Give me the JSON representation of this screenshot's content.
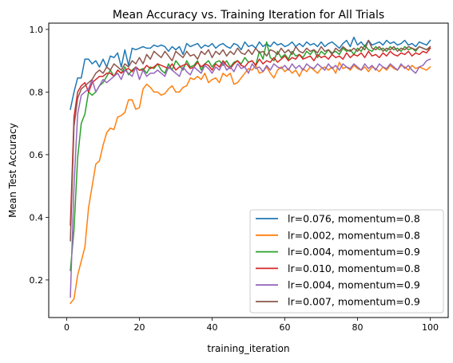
{
  "chart_data": {
    "type": "line",
    "title": "Mean Accuracy vs. Training Iteration for All Trials",
    "xlabel": "training_iteration",
    "ylabel": "Mean Test Accuracy",
    "xlim": [
      -4.95,
      104.95
    ],
    "ylim": [
      0.08,
      1.02
    ],
    "xticks": [
      0,
      20,
      40,
      60,
      80,
      100
    ],
    "yticks": [
      0.2,
      0.4,
      0.6,
      0.8,
      1.0
    ],
    "ytick_labels": [
      "0.2",
      "0.4",
      "0.6",
      "0.8",
      "1.0"
    ],
    "grid": false,
    "legend": "lower-right",
    "series": [
      {
        "name": "lr=0.076, momentum=0.8",
        "color": "#1f77b4",
        "x": [
          1,
          2,
          3,
          4,
          5,
          6,
          7,
          8,
          9,
          10,
          11,
          12,
          13,
          14,
          15,
          16,
          17,
          18,
          19,
          20,
          21,
          22,
          23,
          24,
          25,
          26,
          27,
          28,
          29,
          30,
          31,
          32,
          33,
          34,
          35,
          36,
          37,
          38,
          39,
          40,
          41,
          42,
          43,
          44,
          45,
          46,
          47,
          48,
          49,
          50,
          51,
          52,
          53,
          54,
          55,
          56,
          57,
          58,
          59,
          60,
          61,
          62,
          63,
          64,
          65,
          66,
          67,
          68,
          69,
          70,
          71,
          72,
          73,
          74,
          75,
          76,
          77,
          78,
          79,
          80,
          81,
          82,
          83,
          84,
          85,
          86,
          87,
          88,
          89,
          90,
          91,
          92,
          93,
          94,
          95,
          96,
          97,
          98,
          99,
          100
        ],
        "values": [
          0.745,
          0.8,
          0.845,
          0.845,
          0.905,
          0.905,
          0.89,
          0.9,
          0.88,
          0.905,
          0.88,
          0.915,
          0.91,
          0.925,
          0.88,
          0.935,
          0.885,
          0.94,
          0.935,
          0.94,
          0.945,
          0.94,
          0.94,
          0.95,
          0.945,
          0.95,
          0.945,
          0.93,
          0.945,
          0.935,
          0.945,
          0.92,
          0.955,
          0.945,
          0.95,
          0.955,
          0.94,
          0.95,
          0.945,
          0.955,
          0.94,
          0.95,
          0.955,
          0.945,
          0.94,
          0.955,
          0.95,
          0.935,
          0.96,
          0.945,
          0.95,
          0.94,
          0.96,
          0.945,
          0.955,
          0.945,
          0.96,
          0.95,
          0.955,
          0.945,
          0.95,
          0.96,
          0.945,
          0.955,
          0.945,
          0.96,
          0.95,
          0.955,
          0.945,
          0.96,
          0.945,
          0.955,
          0.96,
          0.95,
          0.94,
          0.955,
          0.965,
          0.945,
          0.975,
          0.95,
          0.96,
          0.945,
          0.965,
          0.95,
          0.955,
          0.96,
          0.95,
          0.965,
          0.955,
          0.96,
          0.95,
          0.955,
          0.965,
          0.95,
          0.955,
          0.945,
          0.96,
          0.955,
          0.95,
          0.965
        ]
      },
      {
        "name": "lr=0.002, momentum=0.8",
        "color": "#ff7f0e",
        "x": [
          1,
          2,
          3,
          4,
          5,
          6,
          7,
          8,
          9,
          10,
          11,
          12,
          13,
          14,
          15,
          16,
          17,
          18,
          19,
          20,
          21,
          22,
          23,
          24,
          25,
          26,
          27,
          28,
          29,
          30,
          31,
          32,
          33,
          34,
          35,
          36,
          37,
          38,
          39,
          40,
          41,
          42,
          43,
          44,
          45,
          46,
          47,
          48,
          49,
          50,
          51,
          52,
          53,
          54,
          55,
          56,
          57,
          58,
          59,
          60,
          61,
          62,
          63,
          64,
          65,
          66,
          67,
          68,
          69,
          70,
          71,
          72,
          73,
          74,
          75,
          76,
          77,
          78,
          79,
          80,
          81,
          82,
          83,
          84,
          85,
          86,
          87,
          88,
          89,
          90,
          91,
          92,
          93,
          94,
          95,
          96,
          97,
          98,
          99,
          100
        ],
        "values": [
          0.125,
          0.14,
          0.215,
          0.26,
          0.305,
          0.43,
          0.5,
          0.57,
          0.58,
          0.63,
          0.67,
          0.685,
          0.68,
          0.72,
          0.725,
          0.735,
          0.775,
          0.775,
          0.745,
          0.75,
          0.81,
          0.825,
          0.815,
          0.8,
          0.8,
          0.79,
          0.795,
          0.81,
          0.82,
          0.8,
          0.8,
          0.815,
          0.82,
          0.845,
          0.84,
          0.85,
          0.84,
          0.86,
          0.83,
          0.84,
          0.845,
          0.83,
          0.86,
          0.85,
          0.86,
          0.825,
          0.83,
          0.845,
          0.86,
          0.875,
          0.87,
          0.885,
          0.86,
          0.865,
          0.88,
          0.86,
          0.845,
          0.87,
          0.88,
          0.865,
          0.875,
          0.86,
          0.87,
          0.85,
          0.875,
          0.865,
          0.88,
          0.87,
          0.86,
          0.875,
          0.88,
          0.87,
          0.88,
          0.86,
          0.895,
          0.875,
          0.88,
          0.87,
          0.885,
          0.875,
          0.87,
          0.88,
          0.865,
          0.88,
          0.875,
          0.865,
          0.88,
          0.87,
          0.885,
          0.875,
          0.87,
          0.885,
          0.88,
          0.87,
          0.885,
          0.875,
          0.88,
          0.875,
          0.87,
          0.88
        ]
      },
      {
        "name": "lr=0.004, momentum=0.9",
        "color": "#2ca02c",
        "x": [
          1,
          2,
          3,
          4,
          5,
          6,
          7,
          8,
          9,
          10,
          11,
          12,
          13,
          14,
          15,
          16,
          17,
          18,
          19,
          20,
          21,
          22,
          23,
          24,
          25,
          26,
          27,
          28,
          29,
          30,
          31,
          32,
          33,
          34,
          35,
          36,
          37,
          38,
          39,
          40,
          41,
          42,
          43,
          44,
          45,
          46,
          47,
          48,
          49,
          50,
          51,
          52,
          53,
          54,
          55,
          56,
          57,
          58,
          59,
          60,
          61,
          62,
          63,
          64,
          65,
          66,
          67,
          68,
          69,
          70,
          71,
          72,
          73,
          74,
          75,
          76,
          77,
          78,
          79,
          80,
          81,
          82,
          83,
          84,
          85,
          86,
          87,
          88,
          89,
          90,
          91,
          92,
          93,
          94,
          95,
          96,
          97,
          98,
          99,
          100
        ],
        "values": [
          0.23,
          0.36,
          0.59,
          0.7,
          0.73,
          0.8,
          0.79,
          0.8,
          0.82,
          0.83,
          0.85,
          0.87,
          0.85,
          0.87,
          0.86,
          0.88,
          0.855,
          0.87,
          0.88,
          0.87,
          0.875,
          0.86,
          0.88,
          0.875,
          0.89,
          0.87,
          0.86,
          0.89,
          0.87,
          0.9,
          0.885,
          0.87,
          0.9,
          0.88,
          0.885,
          0.9,
          0.87,
          0.89,
          0.9,
          0.88,
          0.895,
          0.9,
          0.885,
          0.9,
          0.88,
          0.895,
          0.9,
          0.89,
          0.91,
          0.895,
          0.9,
          0.885,
          0.93,
          0.905,
          0.96,
          0.91,
          0.9,
          0.93,
          0.91,
          0.92,
          0.905,
          0.93,
          0.915,
          0.92,
          0.91,
          0.93,
          0.92,
          0.935,
          0.91,
          0.93,
          0.92,
          0.935,
          0.925,
          0.93,
          0.92,
          0.94,
          0.93,
          0.935,
          0.92,
          0.94,
          0.93,
          0.95,
          0.935,
          0.93,
          0.945,
          0.935,
          0.94,
          0.93,
          0.945,
          0.935,
          0.94,
          0.93,
          0.945,
          0.935,
          0.94,
          0.93,
          0.945,
          0.94,
          0.935,
          0.94
        ]
      },
      {
        "name": "lr=0.010, momentum=0.8",
        "color": "#d62728",
        "x": [
          1,
          2,
          3,
          4,
          5,
          6,
          7,
          8,
          9,
          10,
          11,
          12,
          13,
          14,
          15,
          16,
          17,
          18,
          19,
          20,
          21,
          22,
          23,
          24,
          25,
          26,
          27,
          28,
          29,
          30,
          31,
          32,
          33,
          34,
          35,
          36,
          37,
          38,
          39,
          40,
          41,
          42,
          43,
          44,
          45,
          46,
          47,
          48,
          49,
          50,
          51,
          52,
          53,
          54,
          55,
          56,
          57,
          58,
          59,
          60,
          61,
          62,
          63,
          64,
          65,
          66,
          67,
          68,
          69,
          70,
          71,
          72,
          73,
          74,
          75,
          76,
          77,
          78,
          79,
          80,
          81,
          82,
          83,
          84,
          85,
          86,
          87,
          88,
          89,
          90,
          91,
          92,
          93,
          94,
          95,
          96,
          97,
          98,
          99,
          100
        ],
        "values": [
          0.375,
          0.72,
          0.8,
          0.82,
          0.83,
          0.8,
          0.83,
          0.84,
          0.85,
          0.85,
          0.86,
          0.86,
          0.85,
          0.87,
          0.86,
          0.87,
          0.875,
          0.865,
          0.88,
          0.87,
          0.87,
          0.885,
          0.875,
          0.88,
          0.89,
          0.885,
          0.88,
          0.875,
          0.89,
          0.87,
          0.88,
          0.885,
          0.89,
          0.875,
          0.88,
          0.895,
          0.88,
          0.89,
          0.885,
          0.87,
          0.89,
          0.88,
          0.9,
          0.885,
          0.875,
          0.89,
          0.9,
          0.885,
          0.88,
          0.895,
          0.9,
          0.885,
          0.905,
          0.89,
          0.9,
          0.895,
          0.91,
          0.895,
          0.905,
          0.915,
          0.9,
          0.91,
          0.905,
          0.92,
          0.905,
          0.91,
          0.915,
          0.9,
          0.92,
          0.91,
          0.915,
          0.905,
          0.92,
          0.91,
          0.915,
          0.905,
          0.925,
          0.91,
          0.92,
          0.915,
          0.925,
          0.91,
          0.93,
          0.915,
          0.92,
          0.91,
          0.925,
          0.915,
          0.93,
          0.92,
          0.915,
          0.925,
          0.92,
          0.93,
          0.915,
          0.925,
          0.92,
          0.93,
          0.925,
          0.94
        ]
      },
      {
        "name": "lr=0.004, momentum=0.9",
        "color": "#9467bd",
        "x": [
          1,
          2,
          3,
          4,
          5,
          6,
          7,
          8,
          9,
          10,
          11,
          12,
          13,
          14,
          15,
          16,
          17,
          18,
          19,
          20,
          21,
          22,
          23,
          24,
          25,
          26,
          27,
          28,
          29,
          30,
          31,
          32,
          33,
          34,
          35,
          36,
          37,
          38,
          39,
          40,
          41,
          42,
          43,
          44,
          45,
          46,
          47,
          48,
          49,
          50,
          51,
          52,
          53,
          54,
          55,
          56,
          57,
          58,
          59,
          60,
          61,
          62,
          63,
          64,
          65,
          66,
          67,
          68,
          69,
          70,
          71,
          72,
          73,
          74,
          75,
          76,
          77,
          78,
          79,
          80,
          81,
          82,
          83,
          84,
          85,
          86,
          87,
          88,
          89,
          90,
          91,
          92,
          93,
          94,
          95,
          96,
          97,
          98,
          99,
          100
        ],
        "values": [
          0.145,
          0.5,
          0.73,
          0.79,
          0.8,
          0.81,
          0.84,
          0.8,
          0.82,
          0.84,
          0.83,
          0.84,
          0.85,
          0.86,
          0.84,
          0.87,
          0.86,
          0.85,
          0.88,
          0.84,
          0.87,
          0.85,
          0.86,
          0.86,
          0.87,
          0.86,
          0.85,
          0.88,
          0.87,
          0.86,
          0.85,
          0.88,
          0.865,
          0.855,
          0.88,
          0.87,
          0.86,
          0.885,
          0.875,
          0.86,
          0.88,
          0.87,
          0.895,
          0.87,
          0.88,
          0.865,
          0.89,
          0.875,
          0.88,
          0.86,
          0.89,
          0.875,
          0.88,
          0.865,
          0.885,
          0.87,
          0.89,
          0.88,
          0.875,
          0.885,
          0.87,
          0.89,
          0.875,
          0.885,
          0.87,
          0.89,
          0.88,
          0.875,
          0.89,
          0.88,
          0.87,
          0.89,
          0.875,
          0.885,
          0.87,
          0.89,
          0.88,
          0.875,
          0.89,
          0.88,
          0.87,
          0.89,
          0.875,
          0.885,
          0.87,
          0.89,
          0.88,
          0.875,
          0.89,
          0.88,
          0.87,
          0.89,
          0.875,
          0.885,
          0.87,
          0.86,
          0.88,
          0.885,
          0.9,
          0.905
        ]
      },
      {
        "name": "lr=0.007, momentum=0.9",
        "color": "#8c564b",
        "x": [
          1,
          2,
          3,
          4,
          5,
          6,
          7,
          8,
          9,
          10,
          11,
          12,
          13,
          14,
          15,
          16,
          17,
          18,
          19,
          20,
          21,
          22,
          23,
          24,
          25,
          26,
          27,
          28,
          29,
          30,
          31,
          32,
          33,
          34,
          35,
          36,
          37,
          38,
          39,
          40,
          41,
          42,
          43,
          44,
          45,
          46,
          47,
          48,
          49,
          50,
          51,
          52,
          53,
          54,
          55,
          56,
          57,
          58,
          59,
          60,
          61,
          62,
          63,
          64,
          65,
          66,
          67,
          68,
          69,
          70,
          71,
          72,
          73,
          74,
          75,
          76,
          77,
          78,
          79,
          80,
          81,
          82,
          83,
          84,
          85,
          86,
          87,
          88,
          89,
          90,
          91,
          92,
          93,
          94,
          95,
          96,
          97,
          98,
          99,
          100
        ],
        "values": [
          0.325,
          0.69,
          0.78,
          0.81,
          0.82,
          0.83,
          0.84,
          0.86,
          0.87,
          0.86,
          0.88,
          0.87,
          0.89,
          0.88,
          0.87,
          0.89,
          0.88,
          0.9,
          0.89,
          0.91,
          0.89,
          0.92,
          0.905,
          0.93,
          0.92,
          0.91,
          0.93,
          0.915,
          0.9,
          0.93,
          0.92,
          0.91,
          0.93,
          0.915,
          0.92,
          0.905,
          0.93,
          0.92,
          0.935,
          0.91,
          0.93,
          0.92,
          0.935,
          0.915,
          0.93,
          0.92,
          0.94,
          0.925,
          0.92,
          0.935,
          0.92,
          0.94,
          0.925,
          0.93,
          0.915,
          0.935,
          0.93,
          0.92,
          0.94,
          0.925,
          0.935,
          0.92,
          0.945,
          0.93,
          0.925,
          0.94,
          0.93,
          0.935,
          0.925,
          0.945,
          0.93,
          0.935,
          0.92,
          0.94,
          0.93,
          0.945,
          0.935,
          0.93,
          0.94,
          0.93,
          0.945,
          0.935,
          0.965,
          0.94,
          0.935,
          0.945,
          0.93,
          0.94,
          0.935,
          0.945,
          0.93,
          0.94,
          0.935,
          0.945,
          0.94,
          0.935,
          0.945,
          0.94,
          0.935,
          0.945
        ]
      }
    ]
  }
}
